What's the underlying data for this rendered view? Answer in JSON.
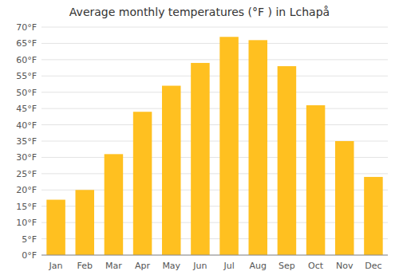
{
  "chart_data": {
    "type": "bar",
    "title": "Average monthly temperatures (°F ) in Lchapå",
    "categories": [
      "Jan",
      "Feb",
      "Mar",
      "Apr",
      "May",
      "Jun",
      "Jul",
      "Aug",
      "Sep",
      "Oct",
      "Nov",
      "Dec"
    ],
    "values": [
      17,
      20,
      31,
      44,
      52,
      59,
      67,
      66,
      58,
      46,
      35,
      24
    ],
    "color": "#FFC020",
    "ylim": [
      0,
      70
    ],
    "yticks": [
      {
        "value": 0,
        "label": "0°F"
      },
      {
        "value": 5,
        "label": "5°F"
      },
      {
        "value": 10,
        "label": "10°F"
      },
      {
        "value": 15,
        "label": "15°F"
      },
      {
        "value": 20,
        "label": "20°F"
      },
      {
        "value": 25,
        "label": "25°F"
      },
      {
        "value": 30,
        "label": "30°F"
      },
      {
        "value": 35,
        "label": "35°F"
      },
      {
        "value": 40,
        "label": "40°F"
      },
      {
        "value": 45,
        "label": "45°F"
      },
      {
        "value": 50,
        "label": "50°F"
      },
      {
        "value": 55,
        "label": "55°F"
      },
      {
        "value": 60,
        "label": "60°F"
      },
      {
        "value": 65,
        "label": "65°F"
      },
      {
        "value": 70,
        "label": "70°F"
      }
    ],
    "grid": true
  }
}
